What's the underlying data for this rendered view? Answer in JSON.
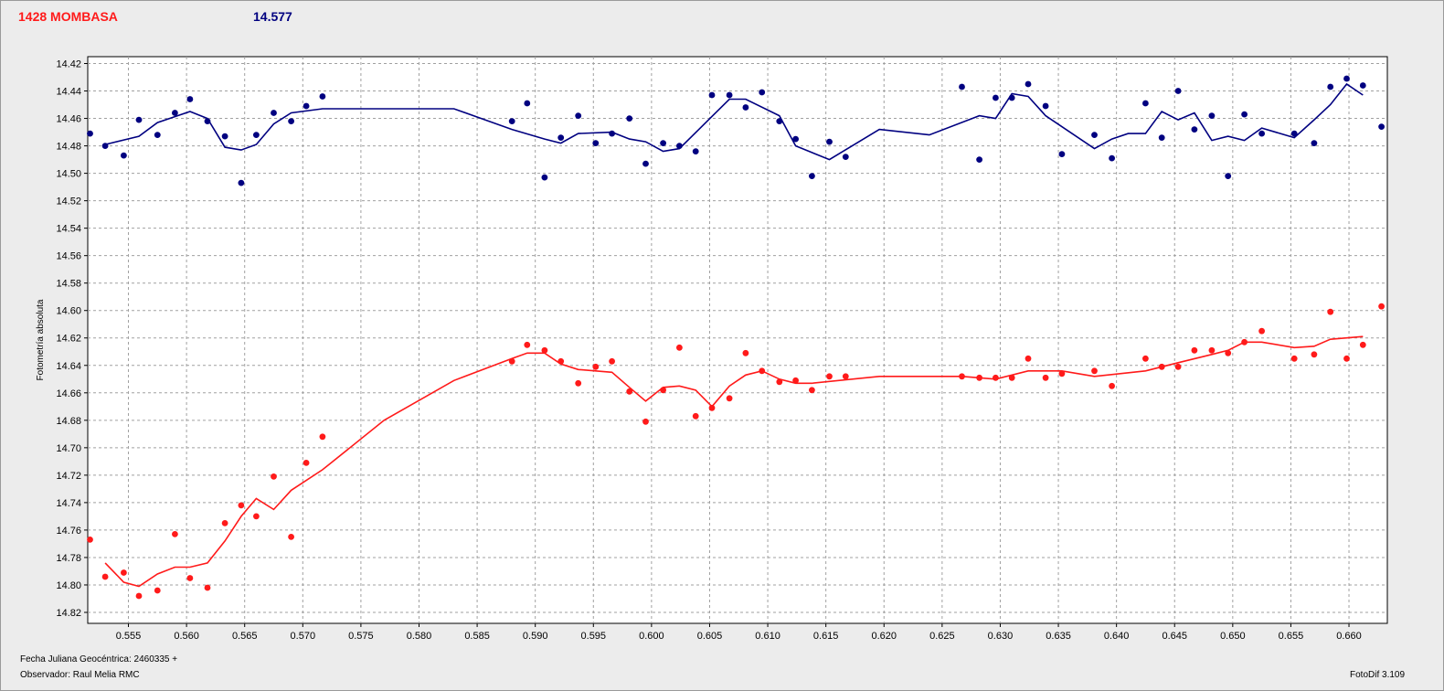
{
  "header": {
    "star_label": "1428 MOMBASA",
    "comparison_value": "14.577"
  },
  "footer": {
    "julian_date": "Fecha Juliana Geocéntrica: 2460335 +",
    "observer": "Observador: Raul Melia RMC",
    "software": "FotoDif 3.109"
  },
  "chart_data": {
    "type": "scatter",
    "ylabel": "Fotometría absoluta",
    "xlim": [
      0.5515,
      0.6633
    ],
    "ylim": [
      14.415,
      14.828
    ],
    "y_inverted": true,
    "grid": true,
    "x_ticks": [
      "0.555",
      "0.560",
      "0.565",
      "0.570",
      "0.575",
      "0.580",
      "0.585",
      "0.590",
      "0.595",
      "0.600",
      "0.605",
      "0.610",
      "0.615",
      "0.620",
      "0.625",
      "0.630",
      "0.635",
      "0.640",
      "0.645",
      "0.650",
      "0.655",
      "0.660"
    ],
    "y_ticks": [
      "14.42",
      "14.44",
      "14.46",
      "14.48",
      "14.50",
      "14.52",
      "14.54",
      "14.56",
      "14.58",
      "14.60",
      "14.62",
      "14.64",
      "14.66",
      "14.68",
      "14.70",
      "14.72",
      "14.74",
      "14.76",
      "14.78",
      "14.80",
      "14.82"
    ],
    "colors": {
      "comparison": "#000080",
      "target": "#ff1a1a",
      "grid": "#a0a0a0",
      "plot_bg": "#ffffff"
    },
    "series": [
      {
        "color": "#000080",
        "points": [
          [
            0.5517,
            14.471
          ],
          [
            0.553,
            14.48
          ],
          [
            0.5546,
            14.487
          ],
          [
            0.5559,
            14.461
          ],
          [
            0.5575,
            14.472
          ],
          [
            0.559,
            14.456
          ],
          [
            0.5603,
            14.446
          ],
          [
            0.5618,
            14.462
          ],
          [
            0.5633,
            14.473
          ],
          [
            0.5647,
            14.507
          ],
          [
            0.566,
            14.472
          ],
          [
            0.5675,
            14.456
          ],
          [
            0.569,
            14.462
          ],
          [
            0.5703,
            14.451
          ],
          [
            0.5717,
            14.444
          ],
          [
            0.588,
            14.462
          ],
          [
            0.5893,
            14.449
          ],
          [
            0.5908,
            14.503
          ],
          [
            0.5922,
            14.474
          ],
          [
            0.5937,
            14.458
          ],
          [
            0.5952,
            14.478
          ],
          [
            0.5966,
            14.471
          ],
          [
            0.5981,
            14.46
          ],
          [
            0.5995,
            14.493
          ],
          [
            0.601,
            14.478
          ],
          [
            0.6024,
            14.48
          ],
          [
            0.6038,
            14.484
          ],
          [
            0.6052,
            14.443
          ],
          [
            0.6067,
            14.443
          ],
          [
            0.6081,
            14.452
          ],
          [
            0.6095,
            14.441
          ],
          [
            0.611,
            14.462
          ],
          [
            0.6124,
            14.475
          ],
          [
            0.6138,
            14.502
          ],
          [
            0.6153,
            14.477
          ],
          [
            0.6167,
            14.488
          ],
          [
            0.6267,
            14.437
          ],
          [
            0.6282,
            14.49
          ],
          [
            0.6296,
            14.445
          ],
          [
            0.631,
            14.445
          ],
          [
            0.6324,
            14.435
          ],
          [
            0.6339,
            14.451
          ],
          [
            0.6353,
            14.486
          ],
          [
            0.6381,
            14.472
          ],
          [
            0.6396,
            14.489
          ],
          [
            0.6425,
            14.449
          ],
          [
            0.6439,
            14.474
          ],
          [
            0.6453,
            14.44
          ],
          [
            0.6467,
            14.468
          ],
          [
            0.6482,
            14.458
          ],
          [
            0.6496,
            14.502
          ],
          [
            0.651,
            14.457
          ],
          [
            0.6525,
            14.471
          ],
          [
            0.6553,
            14.471
          ],
          [
            0.657,
            14.478
          ],
          [
            0.6584,
            14.437
          ],
          [
            0.6598,
            14.431
          ],
          [
            0.6612,
            14.436
          ],
          [
            0.6628,
            14.466
          ]
        ],
        "trend": [
          [
            0.553,
            14.479
          ],
          [
            0.5559,
            14.473
          ],
          [
            0.5575,
            14.463
          ],
          [
            0.5603,
            14.455
          ],
          [
            0.5618,
            14.46
          ],
          [
            0.5633,
            14.481
          ],
          [
            0.5647,
            14.483
          ],
          [
            0.566,
            14.479
          ],
          [
            0.5675,
            14.464
          ],
          [
            0.569,
            14.456
          ],
          [
            0.5717,
            14.453
          ],
          [
            0.583,
            14.453
          ],
          [
            0.588,
            14.468
          ],
          [
            0.5908,
            14.475
          ],
          [
            0.5922,
            14.478
          ],
          [
            0.5937,
            14.471
          ],
          [
            0.5966,
            14.47
          ],
          [
            0.5981,
            14.475
          ],
          [
            0.5995,
            14.477
          ],
          [
            0.601,
            14.484
          ],
          [
            0.6024,
            14.482
          ],
          [
            0.6067,
            14.446
          ],
          [
            0.6081,
            14.446
          ],
          [
            0.611,
            14.458
          ],
          [
            0.6124,
            14.48
          ],
          [
            0.6153,
            14.49
          ],
          [
            0.6196,
            14.468
          ],
          [
            0.6239,
            14.472
          ],
          [
            0.6282,
            14.458
          ],
          [
            0.6296,
            14.46
          ],
          [
            0.631,
            14.442
          ],
          [
            0.6324,
            14.444
          ],
          [
            0.6339,
            14.458
          ],
          [
            0.6381,
            14.482
          ],
          [
            0.6396,
            14.475
          ],
          [
            0.641,
            14.471
          ],
          [
            0.6425,
            14.471
          ],
          [
            0.6439,
            14.455
          ],
          [
            0.6453,
            14.461
          ],
          [
            0.6467,
            14.456
          ],
          [
            0.6482,
            14.476
          ],
          [
            0.6496,
            14.473
          ],
          [
            0.651,
            14.476
          ],
          [
            0.6525,
            14.467
          ],
          [
            0.6553,
            14.474
          ],
          [
            0.657,
            14.461
          ],
          [
            0.6584,
            14.45
          ],
          [
            0.6598,
            14.435
          ],
          [
            0.6612,
            14.443
          ]
        ]
      },
      {
        "color": "#ff1a1a",
        "points": [
          [
            0.5517,
            14.767
          ],
          [
            0.553,
            14.794
          ],
          [
            0.5546,
            14.791
          ],
          [
            0.5559,
            14.808
          ],
          [
            0.5575,
            14.804
          ],
          [
            0.559,
            14.763
          ],
          [
            0.5603,
            14.795
          ],
          [
            0.5618,
            14.802
          ],
          [
            0.5633,
            14.755
          ],
          [
            0.5647,
            14.742
          ],
          [
            0.566,
            14.75
          ],
          [
            0.5675,
            14.721
          ],
          [
            0.569,
            14.765
          ],
          [
            0.5703,
            14.711
          ],
          [
            0.5717,
            14.692
          ],
          [
            0.588,
            14.637
          ],
          [
            0.5893,
            14.625
          ],
          [
            0.5908,
            14.629
          ],
          [
            0.5922,
            14.637
          ],
          [
            0.5937,
            14.653
          ],
          [
            0.5952,
            14.641
          ],
          [
            0.5966,
            14.637
          ],
          [
            0.5981,
            14.659
          ],
          [
            0.5995,
            14.681
          ],
          [
            0.601,
            14.658
          ],
          [
            0.6024,
            14.627
          ],
          [
            0.6038,
            14.677
          ],
          [
            0.6052,
            14.671
          ],
          [
            0.6067,
            14.664
          ],
          [
            0.6081,
            14.631
          ],
          [
            0.6095,
            14.644
          ],
          [
            0.611,
            14.652
          ],
          [
            0.6124,
            14.651
          ],
          [
            0.6138,
            14.658
          ],
          [
            0.6153,
            14.648
          ],
          [
            0.6167,
            14.648
          ],
          [
            0.6267,
            14.648
          ],
          [
            0.6282,
            14.649
          ],
          [
            0.6296,
            14.649
          ],
          [
            0.631,
            14.649
          ],
          [
            0.6324,
            14.635
          ],
          [
            0.6339,
            14.649
          ],
          [
            0.6353,
            14.646
          ],
          [
            0.6381,
            14.644
          ],
          [
            0.6396,
            14.655
          ],
          [
            0.6425,
            14.635
          ],
          [
            0.6439,
            14.641
          ],
          [
            0.6453,
            14.641
          ],
          [
            0.6467,
            14.629
          ],
          [
            0.6482,
            14.629
          ],
          [
            0.6496,
            14.631
          ],
          [
            0.651,
            14.623
          ],
          [
            0.6525,
            14.615
          ],
          [
            0.6553,
            14.635
          ],
          [
            0.657,
            14.632
          ],
          [
            0.6584,
            14.601
          ],
          [
            0.6598,
            14.635
          ],
          [
            0.6612,
            14.625
          ],
          [
            0.6628,
            14.597
          ]
        ],
        "trend": [
          [
            0.553,
            14.784
          ],
          [
            0.5546,
            14.798
          ],
          [
            0.5559,
            14.801
          ],
          [
            0.5575,
            14.792
          ],
          [
            0.559,
            14.787
          ],
          [
            0.5603,
            14.787
          ],
          [
            0.5618,
            14.784
          ],
          [
            0.5633,
            14.768
          ],
          [
            0.5647,
            14.75
          ],
          [
            0.566,
            14.737
          ],
          [
            0.5675,
            14.745
          ],
          [
            0.569,
            14.731
          ],
          [
            0.5717,
            14.716
          ],
          [
            0.577,
            14.68
          ],
          [
            0.583,
            14.651
          ],
          [
            0.588,
            14.635
          ],
          [
            0.5893,
            14.631
          ],
          [
            0.5908,
            14.631
          ],
          [
            0.5922,
            14.639
          ],
          [
            0.5937,
            14.643
          ],
          [
            0.5966,
            14.645
          ],
          [
            0.5981,
            14.656
          ],
          [
            0.5995,
            14.666
          ],
          [
            0.601,
            14.656
          ],
          [
            0.6024,
            14.655
          ],
          [
            0.6038,
            14.658
          ],
          [
            0.6052,
            14.67
          ],
          [
            0.6067,
            14.655
          ],
          [
            0.6081,
            14.647
          ],
          [
            0.6095,
            14.644
          ],
          [
            0.611,
            14.65
          ],
          [
            0.6124,
            14.653
          ],
          [
            0.6138,
            14.653
          ],
          [
            0.6196,
            14.648
          ],
          [
            0.6267,
            14.648
          ],
          [
            0.6296,
            14.65
          ],
          [
            0.6324,
            14.644
          ],
          [
            0.6353,
            14.644
          ],
          [
            0.6381,
            14.648
          ],
          [
            0.6425,
            14.644
          ],
          [
            0.6453,
            14.638
          ],
          [
            0.6482,
            14.632
          ],
          [
            0.6496,
            14.629
          ],
          [
            0.651,
            14.623
          ],
          [
            0.6525,
            14.623
          ],
          [
            0.6553,
            14.627
          ],
          [
            0.657,
            14.626
          ],
          [
            0.6584,
            14.621
          ],
          [
            0.6598,
            14.62
          ],
          [
            0.6612,
            14.619
          ]
        ]
      }
    ]
  }
}
